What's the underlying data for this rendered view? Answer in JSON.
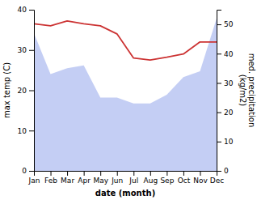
{
  "chart_data": {
    "type": "line",
    "xlabel": "date (month)",
    "ylabel": "max temp (C)",
    "y2label": "med. precipitation\n(kg/m2)",
    "categories": [
      "Jan",
      "Feb",
      "Mar",
      "Apr",
      "May",
      "Jun",
      "Jul",
      "Aug",
      "Sep",
      "Oct",
      "Nov",
      "Dec"
    ],
    "series": [
      {
        "type": "area",
        "axis": "y2",
        "color": "#b0bef0",
        "values": [
          47,
          33,
          35,
          36,
          25,
          25,
          23,
          23,
          26,
          32,
          34,
          52
        ]
      },
      {
        "type": "line",
        "color": "#cc3333",
        "values": [
          36.5,
          36.0,
          37.2,
          36.5,
          36.0,
          34.0,
          28.0,
          27.5,
          28.2,
          29.0,
          32.0,
          32.0
        ]
      }
    ],
    "ylim": [
      0,
      40
    ],
    "yticks": [
      0,
      10,
      20,
      30,
      40
    ],
    "y2lim": [
      0,
      55
    ],
    "y2ticks": [
      0,
      10,
      20,
      30,
      40,
      50
    ]
  }
}
